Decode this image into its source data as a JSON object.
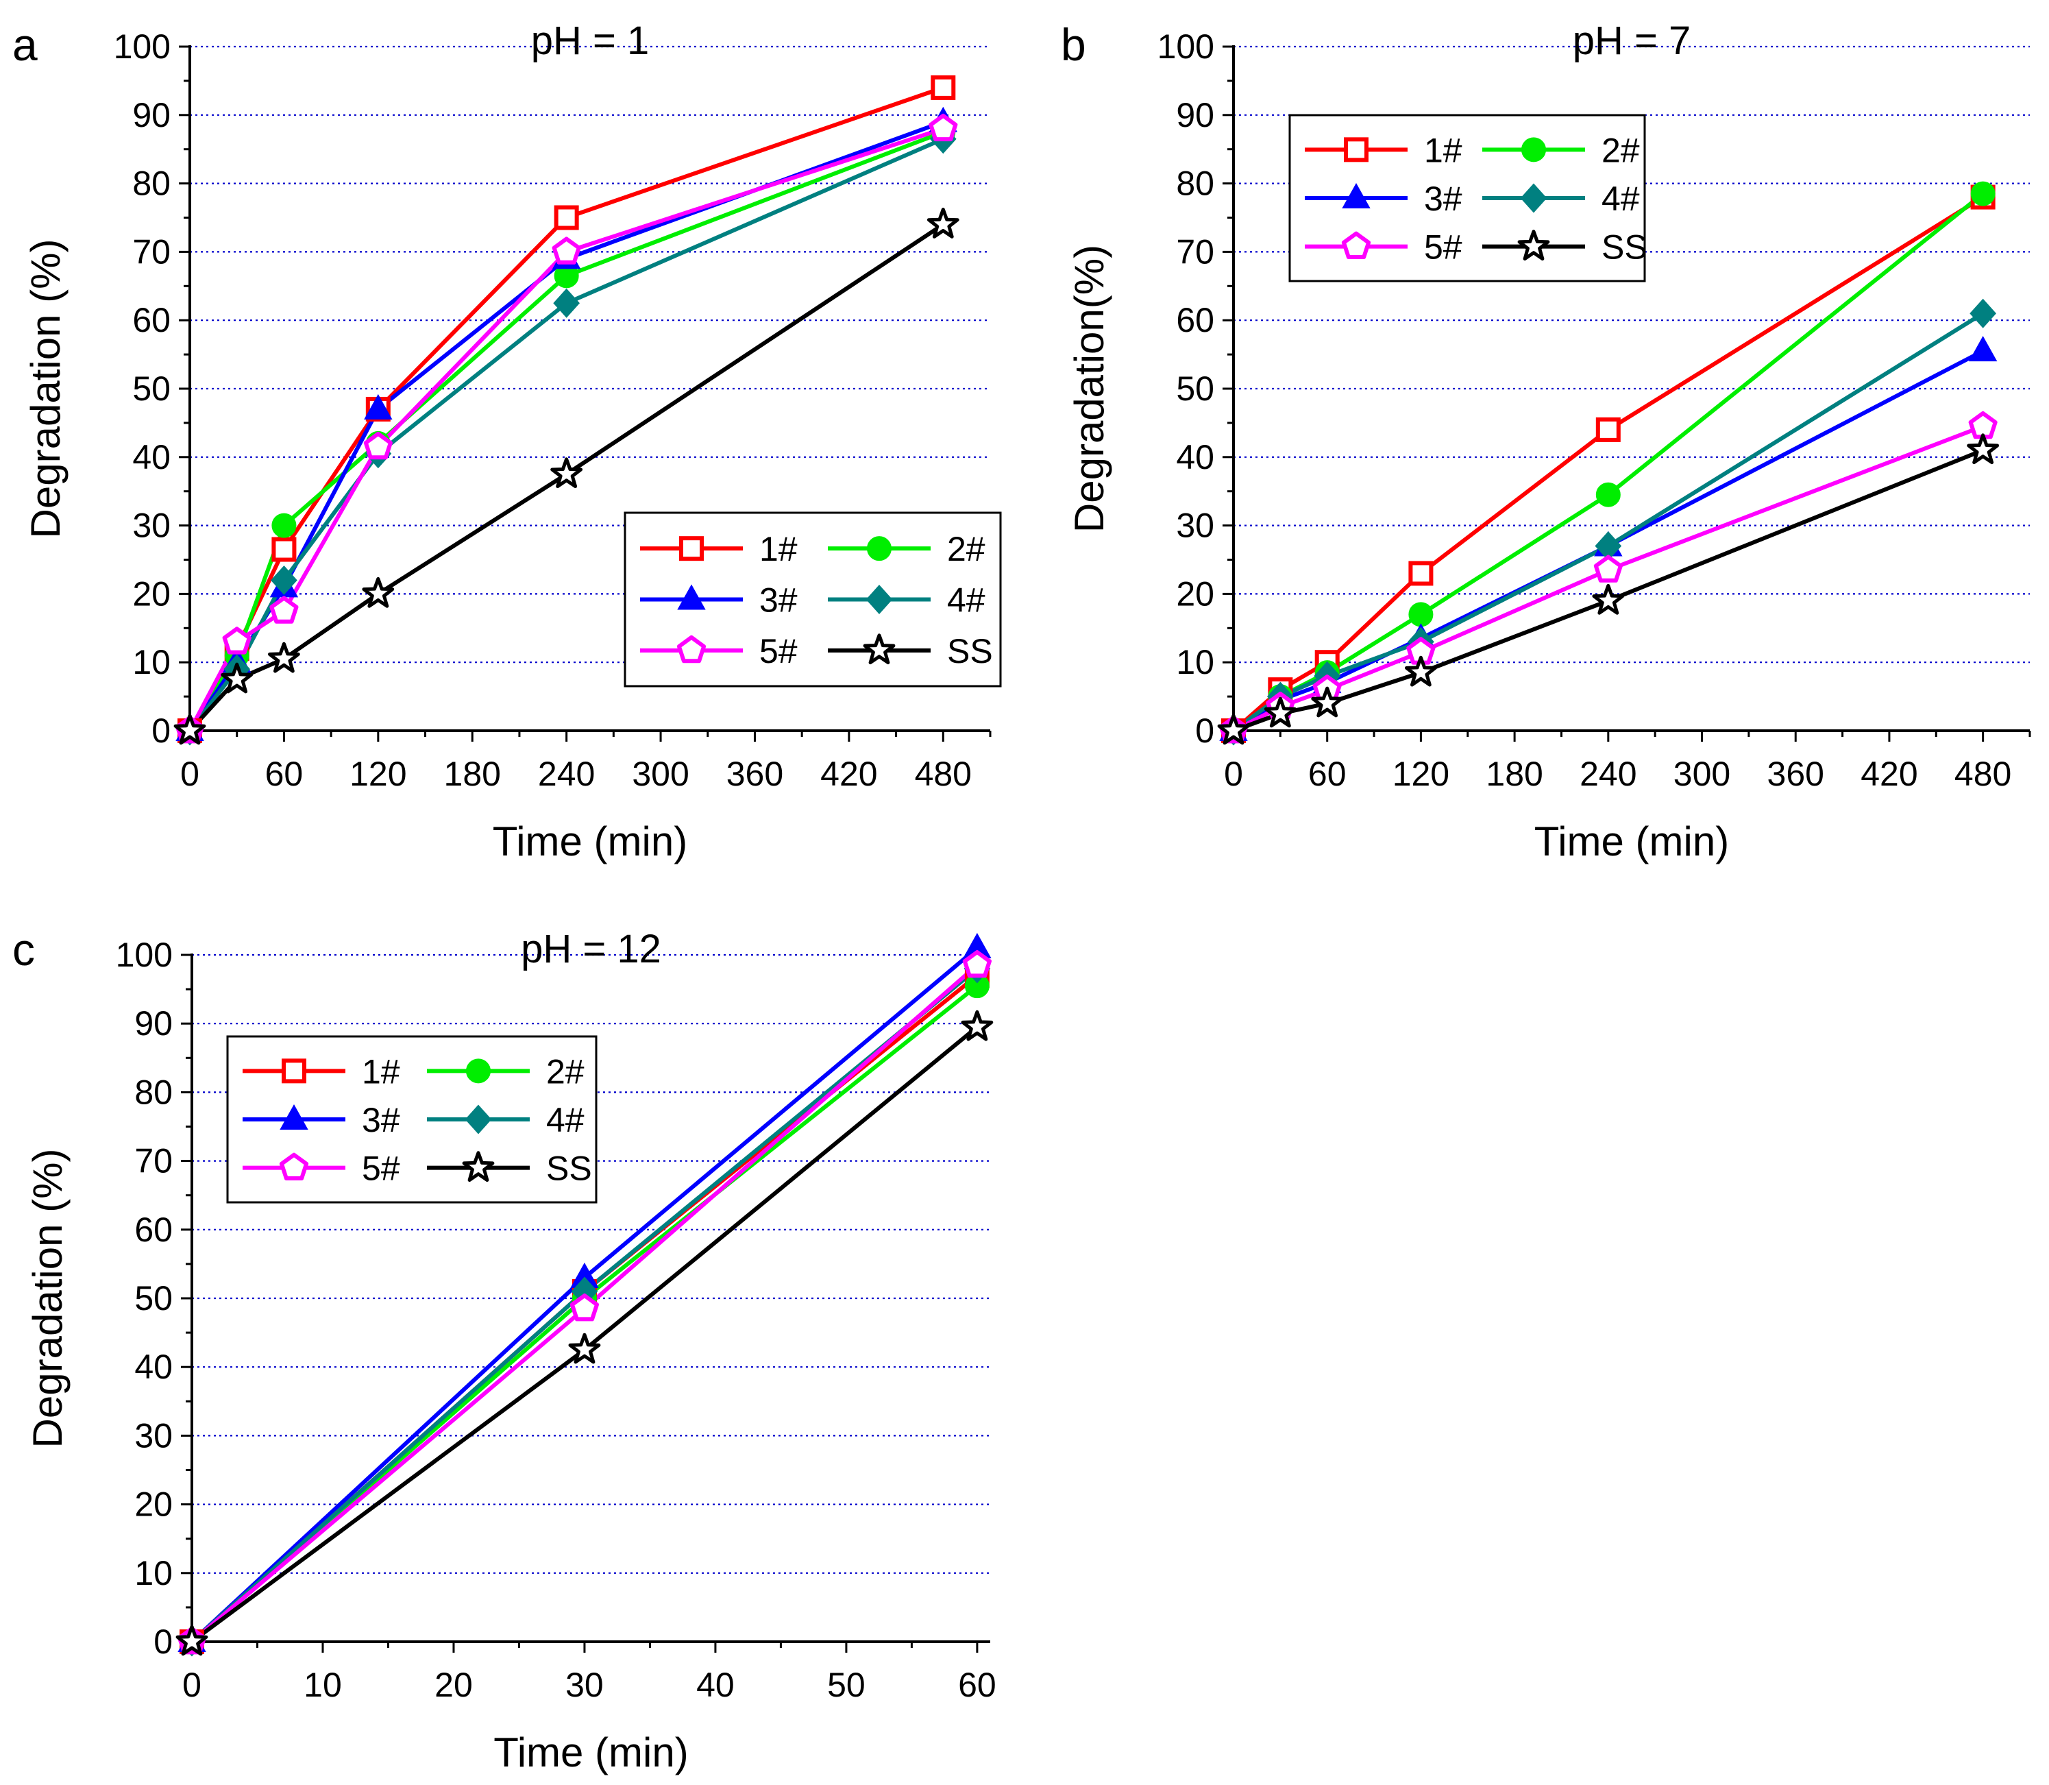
{
  "figure": {
    "series_styles": [
      {
        "name": "1#",
        "color": "#ff0000",
        "marker": "open-square"
      },
      {
        "name": "2#",
        "color": "#00ee00",
        "marker": "filled-circle"
      },
      {
        "name": "3#",
        "color": "#0000ff",
        "marker": "filled-triangle"
      },
      {
        "name": "4#",
        "color": "#008080",
        "marker": "filled-diamond"
      },
      {
        "name": "5#",
        "color": "#ff00ff",
        "marker": "open-pentagon"
      },
      {
        "name": "SS",
        "color": "#000000",
        "marker": "open-star"
      }
    ],
    "gridline_color": "#0000cc"
  },
  "chart_data": [
    {
      "panel": "a",
      "type": "line",
      "title": "pH = 1",
      "xlabel": "Time (min)",
      "ylabel": "Degradation (%)",
      "xlim": [
        0,
        510
      ],
      "ylim": [
        0,
        100
      ],
      "xticks": [
        0,
        60,
        120,
        180,
        240,
        300,
        360,
        420,
        480
      ],
      "yticks": [
        0,
        10,
        20,
        30,
        40,
        50,
        60,
        70,
        80,
        90,
        100
      ],
      "grid": "horizontal-dotted",
      "legend_position": "bottom-right",
      "x": [
        0,
        30,
        60,
        120,
        240,
        480
      ],
      "series": [
        {
          "name": "1#",
          "values": [
            0,
            12,
            26.5,
            47,
            75,
            94
          ]
        },
        {
          "name": "2#",
          "values": [
            0,
            11,
            30,
            42,
            66.5,
            87.5
          ]
        },
        {
          "name": "3#",
          "values": [
            0,
            10,
            21,
            47,
            69,
            89
          ]
        },
        {
          "name": "4#",
          "values": [
            0,
            9,
            22,
            40.5,
            62.5,
            86.5
          ]
        },
        {
          "name": "5#",
          "values": [
            0,
            13,
            17.5,
            41.5,
            70,
            88
          ]
        },
        {
          "name": "SS",
          "values": [
            0,
            7.5,
            10.5,
            20,
            37.5,
            74
          ]
        }
      ]
    },
    {
      "panel": "b",
      "type": "line",
      "title": "pH = 7",
      "xlabel": "Time (min)",
      "ylabel": "Degradation(%)",
      "xlim": [
        0,
        510
      ],
      "ylim": [
        0,
        100
      ],
      "xticks": [
        0,
        60,
        120,
        180,
        240,
        300,
        360,
        420,
        480
      ],
      "yticks": [
        0,
        10,
        20,
        30,
        40,
        50,
        60,
        70,
        80,
        90,
        100
      ],
      "grid": "horizontal-dotted",
      "legend_position": "top-left",
      "x": [
        0,
        30,
        60,
        120,
        240,
        480
      ],
      "series": [
        {
          "name": "1#",
          "values": [
            0,
            6,
            10,
            23,
            44,
            78
          ]
        },
        {
          "name": "2#",
          "values": [
            0,
            5,
            8.5,
            17,
            34.5,
            78.5
          ]
        },
        {
          "name": "3#",
          "values": [
            0,
            4.5,
            7,
            13.5,
            27,
            55.5
          ]
        },
        {
          "name": "4#",
          "values": [
            0,
            5,
            8,
            13,
            27,
            61
          ]
        },
        {
          "name": "5#",
          "values": [
            0,
            3.5,
            6,
            11.5,
            23.5,
            44.5
          ]
        },
        {
          "name": "SS",
          "values": [
            0,
            2.5,
            4,
            8.5,
            19,
            41
          ]
        }
      ]
    },
    {
      "panel": "c",
      "type": "line",
      "title": "pH = 12",
      "xlabel": "Time (min)",
      "ylabel": "Degradation (%)",
      "xlim": [
        0,
        61
      ],
      "ylim": [
        0,
        100
      ],
      "xticks": [
        0,
        10,
        20,
        30,
        40,
        50,
        60
      ],
      "yticks": [
        0,
        10,
        20,
        30,
        40,
        50,
        60,
        70,
        80,
        90,
        100
      ],
      "grid": "horizontal-dotted",
      "legend_position": "top-left",
      "x": [
        0,
        30,
        60
      ],
      "series": [
        {
          "name": "1#",
          "values": [
            0,
            51,
            97
          ]
        },
        {
          "name": "2#",
          "values": [
            0,
            50,
            95.5
          ]
        },
        {
          "name": "3#",
          "values": [
            0,
            53,
            101
          ]
        },
        {
          "name": "4#",
          "values": [
            0,
            51,
            98
          ]
        },
        {
          "name": "5#",
          "values": [
            0,
            48.5,
            98.5
          ]
        },
        {
          "name": "SS",
          "values": [
            0,
            42.5,
            89.5
          ]
        }
      ]
    }
  ]
}
